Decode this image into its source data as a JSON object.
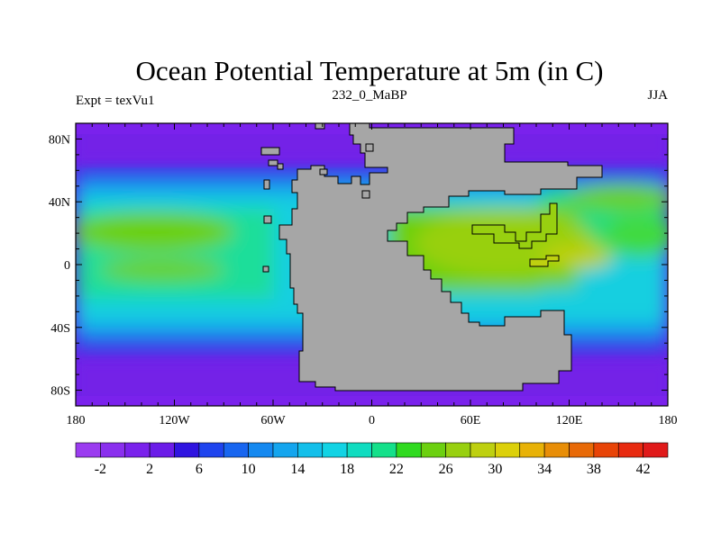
{
  "header": {
    "title": "Ocean Potential Temperature at 5m (in C)",
    "left": "Expt = texVu1",
    "center": "232_0_MaBP",
    "right": "JJA"
  },
  "map": {
    "x_ticks": [
      "180",
      "120W",
      "60W",
      "0",
      "60E",
      "120E",
      "180"
    ],
    "y_ticks": [
      "80N",
      "40N",
      "0",
      "40S",
      "80S"
    ],
    "land_color": "#a6a6a6",
    "lon_range": [
      -180,
      180
    ],
    "lat_range": [
      -90,
      90
    ]
  },
  "colorbar": {
    "labels": [
      "-2",
      "2",
      "6",
      "10",
      "14",
      "18",
      "22",
      "26",
      "30",
      "34",
      "38",
      "42"
    ],
    "colors": [
      "#9b3cf0",
      "#8a2fee",
      "#7a22ec",
      "#6b1ce8",
      "#2f14e0",
      "#1f44ee",
      "#1866f0",
      "#1589f0",
      "#14a5ee",
      "#13bfea",
      "#12d3e4",
      "#10dcc0",
      "#14e08a",
      "#30da20",
      "#6cd010",
      "#98d010",
      "#bed010",
      "#dcd00a",
      "#e8b208",
      "#e88e08",
      "#e86a08",
      "#e84408",
      "#e82a10",
      "#e01a1a"
    ]
  }
}
